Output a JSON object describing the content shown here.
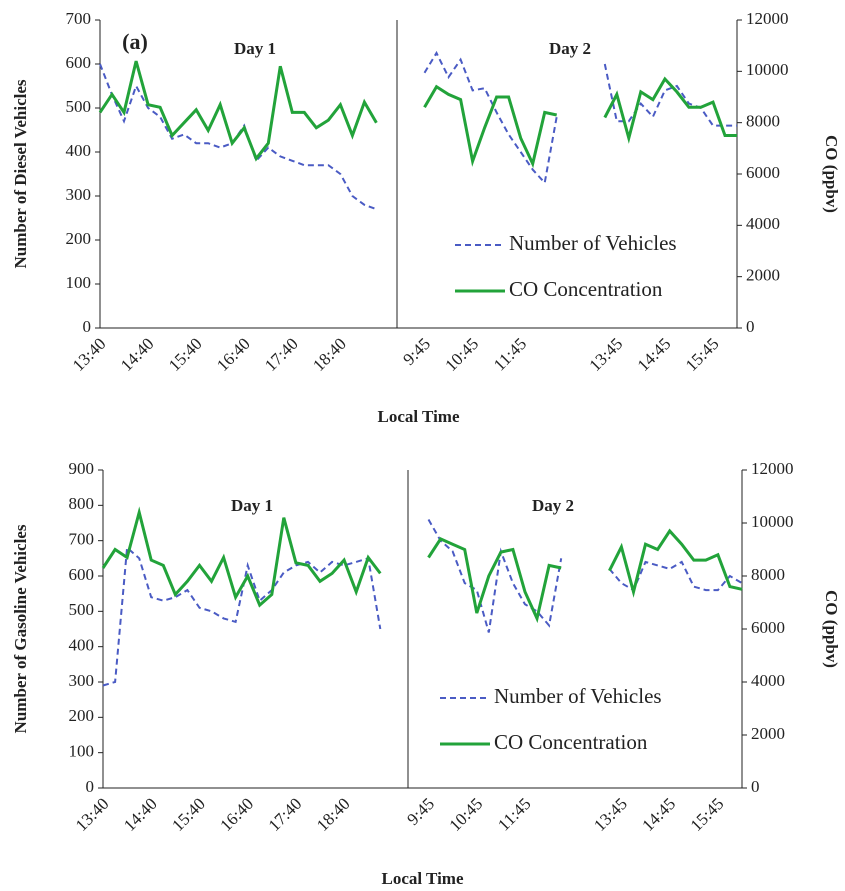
{
  "chart_data": [
    {
      "type": "line",
      "panel_label": "(a)",
      "annotations": [
        "Day 1",
        "Day 2"
      ],
      "y_label": "Number of Diesel Vehicles",
      "y2_label": "CO (ppbv)",
      "x_label": "Local Time",
      "categories": [
        "13:40",
        null,
        null,
        null,
        "14:40",
        null,
        null,
        null,
        "15:40",
        null,
        null,
        null,
        "16:40",
        null,
        null,
        null,
        "17:40",
        null,
        null,
        null,
        "18:40",
        null,
        null,
        null,
        null,
        null,
        null,
        "9:45",
        null,
        null,
        null,
        "10:45",
        null,
        null,
        null,
        "11:45",
        null,
        null,
        null,
        null,
        null,
        null,
        null,
        "13:45",
        null,
        null,
        null,
        "14:45",
        null,
        null,
        null,
        "15:45",
        null,
        null
      ],
      "series": [
        {
          "name": "Number of Vehicles",
          "color": "#4a5bc4",
          "style": "dashed",
          "values": [
            600,
            530,
            470,
            550,
            500,
            480,
            430,
            440,
            420,
            420,
            410,
            420,
            460,
            380,
            410,
            390,
            380,
            370,
            370,
            370,
            350,
            300,
            280,
            270,
            null,
            null,
            null,
            580,
            625,
            570,
            610,
            540,
            545,
            490,
            440,
            400,
            360,
            330,
            480,
            null,
            null,
            null,
            600,
            470,
            470,
            510,
            480,
            540,
            550,
            510,
            500,
            460,
            460,
            460
          ]
        },
        {
          "name": "CO Concentration",
          "color": "#22a33a",
          "style": "solid",
          "axis": "y2",
          "values": [
            8400,
            9100,
            8400,
            10400,
            8700,
            8600,
            7500,
            8000,
            8500,
            7700,
            8700,
            7200,
            7800,
            6600,
            7200,
            10200,
            8400,
            8400,
            7800,
            8100,
            8700,
            7500,
            8800,
            8000,
            null,
            null,
            null,
            8600,
            9400,
            9100,
            8900,
            6500,
            7800,
            9000,
            9000,
            7400,
            6400,
            8400,
            8300,
            null,
            null,
            null,
            8200,
            9100,
            7400,
            9200,
            8900,
            9700,
            9200,
            8600,
            8600,
            8800,
            7500,
            7500
          ]
        }
      ],
      "ylim": [
        0,
        700
      ],
      "yticks": [
        0,
        100,
        200,
        300,
        400,
        500,
        600,
        700
      ],
      "y2lim": [
        0,
        12000
      ],
      "y2ticks": [
        0,
        2000,
        4000,
        6000,
        8000,
        10000,
        12000
      ],
      "legend": "lower right"
    },
    {
      "type": "line",
      "annotations": [
        "Day 1",
        "Day 2"
      ],
      "y_label": "Number of Gasoline Vehicles",
      "y2_label": "CO (ppbv)",
      "x_label": "Local Time",
      "categories": [
        "13:40",
        null,
        null,
        null,
        "14:40",
        null,
        null,
        null,
        "15:40",
        null,
        null,
        null,
        "16:40",
        null,
        null,
        null,
        "17:40",
        null,
        null,
        null,
        "18:40",
        null,
        null,
        null,
        null,
        null,
        null,
        "9:45",
        null,
        null,
        null,
        "10:45",
        null,
        null,
        null,
        "11:45",
        null,
        null,
        null,
        null,
        null,
        null,
        null,
        "13:45",
        null,
        null,
        null,
        "14:45",
        null,
        null,
        null,
        "15:45",
        null,
        null
      ],
      "series": [
        {
          "name": "Number of Vehicles",
          "color": "#4a5bc4",
          "style": "dashed",
          "values": [
            290,
            300,
            680,
            650,
            540,
            530,
            540,
            560,
            510,
            500,
            480,
            470,
            630,
            530,
            560,
            610,
            630,
            640,
            610,
            640,
            630,
            640,
            650,
            450,
            null,
            null,
            null,
            760,
            700,
            670,
            580,
            560,
            440,
            670,
            580,
            520,
            500,
            460,
            650,
            null,
            null,
            null,
            620,
            580,
            560,
            640,
            630,
            620,
            640,
            570,
            560,
            560,
            600,
            580
          ]
        },
        {
          "name": "CO Concentration",
          "color": "#22a33a",
          "style": "solid",
          "axis": "y2",
          "values": [
            8300,
            9000,
            8700,
            10400,
            8600,
            8400,
            7300,
            7800,
            8400,
            7800,
            8700,
            7200,
            8000,
            6900,
            7300,
            10200,
            8500,
            8400,
            7800,
            8100,
            8600,
            7400,
            8700,
            8100,
            null,
            null,
            null,
            8700,
            9400,
            9200,
            9000,
            6600,
            8000,
            8900,
            9000,
            7400,
            6400,
            8400,
            8300,
            null,
            null,
            null,
            8200,
            9100,
            7400,
            9200,
            9000,
            9700,
            9200,
            8600,
            8600,
            8800,
            7600,
            7500
          ]
        }
      ],
      "ylim": [
        0,
        900
      ],
      "yticks": [
        0,
        100,
        200,
        300,
        400,
        500,
        600,
        700,
        800,
        900
      ],
      "y2lim": [
        0,
        12000
      ],
      "y2ticks": [
        0,
        2000,
        4000,
        6000,
        8000,
        10000,
        12000
      ],
      "legend": "lower right"
    }
  ]
}
